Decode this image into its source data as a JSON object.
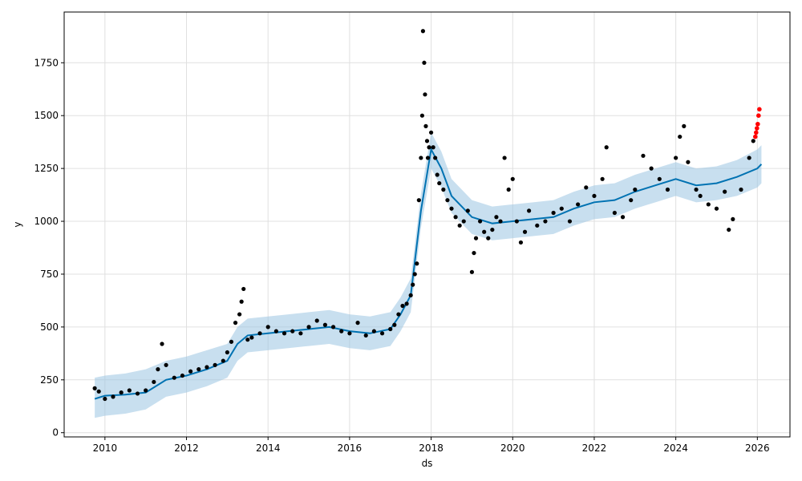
{
  "chart_data": {
    "type": "scatter",
    "title": "",
    "xlabel": "ds",
    "ylabel": "y",
    "xlim": [
      2009.0,
      2026.8
    ],
    "ylim": [
      -20,
      1990
    ],
    "x_ticks": [
      2010,
      2012,
      2014,
      2016,
      2018,
      2020,
      2022,
      2024,
      2026
    ],
    "x_tick_labels": [
      "2010",
      "2012",
      "2014",
      "2016",
      "2018",
      "2020",
      "2022",
      "2024",
      "2026"
    ],
    "y_ticks": [
      0,
      250,
      500,
      750,
      1000,
      1250,
      1500,
      1750
    ],
    "y_tick_labels": [
      "0",
      "250",
      "500",
      "750",
      "1000",
      "1250",
      "1500",
      "1750"
    ],
    "grid": true,
    "legend": "none",
    "colors": {
      "forecast_line": "#0072B2",
      "uncertainty_band": "#9BC4E2",
      "observed_points": "#000000",
      "highlighted_points": "#FF0000",
      "grid": "#e0e0e0"
    },
    "series": [
      {
        "kind": "forecast",
        "x": [
          2009.75,
          2010.0,
          2010.5,
          2011.0,
          2011.5,
          2012.0,
          2012.5,
          2013.0,
          2013.25,
          2013.5,
          2014.0,
          2014.5,
          2015.0,
          2015.5,
          2016.0,
          2016.5,
          2017.0,
          2017.25,
          2017.5,
          2017.75,
          2018.0,
          2018.25,
          2018.5,
          2019.0,
          2019.5,
          2020.0,
          2020.5,
          2021.0,
          2021.5,
          2022.0,
          2022.5,
          2023.0,
          2023.5,
          2024.0,
          2024.5,
          2025.0,
          2025.5,
          2026.0,
          2026.1
        ],
        "yhat": [
          160,
          175,
          180,
          190,
          250,
          270,
          300,
          340,
          420,
          460,
          470,
          480,
          490,
          500,
          480,
          470,
          490,
          560,
          650,
          1050,
          1340,
          1250,
          1120,
          1020,
          990,
          1000,
          1010,
          1020,
          1060,
          1090,
          1100,
          1140,
          1170,
          1200,
          1170,
          1180,
          1210,
          1250,
          1270
        ],
        "yhat_lower": [
          70,
          80,
          90,
          110,
          170,
          190,
          220,
          260,
          340,
          380,
          390,
          400,
          410,
          420,
          400,
          390,
          410,
          480,
          570,
          970,
          1250,
          1160,
          1040,
          940,
          910,
          920,
          930,
          940,
          980,
          1010,
          1020,
          1060,
          1090,
          1120,
          1090,
          1100,
          1120,
          1160,
          1180
        ],
        "yhat_upper": [
          260,
          270,
          280,
          300,
          340,
          360,
          390,
          420,
          500,
          540,
          550,
          560,
          570,
          580,
          560,
          550,
          570,
          640,
          730,
          1130,
          1420,
          1330,
          1200,
          1100,
          1070,
          1080,
          1090,
          1100,
          1140,
          1170,
          1180,
          1220,
          1250,
          1280,
          1250,
          1260,
          1290,
          1340,
          1360
        ]
      },
      {
        "kind": "observed",
        "x": [
          2009.75,
          2009.85,
          2010.0,
          2010.2,
          2010.4,
          2010.6,
          2010.8,
          2011.0,
          2011.2,
          2011.3,
          2011.4,
          2011.5,
          2011.7,
          2011.9,
          2012.1,
          2012.3,
          2012.5,
          2012.7,
          2012.9,
          2013.0,
          2013.1,
          2013.2,
          2013.3,
          2013.35,
          2013.4,
          2013.5,
          2013.6,
          2013.8,
          2014.0,
          2014.2,
          2014.4,
          2014.6,
          2014.8,
          2015.0,
          2015.2,
          2015.4,
          2015.6,
          2015.8,
          2016.0,
          2016.2,
          2016.4,
          2016.6,
          2016.8,
          2017.0,
          2017.1,
          2017.2,
          2017.3,
          2017.4,
          2017.5,
          2017.55,
          2017.6,
          2017.65,
          2017.7,
          2017.75,
          2017.78,
          2017.8,
          2017.83,
          2017.85,
          2017.87,
          2017.9,
          2017.92,
          2017.95,
          2018.0,
          2018.05,
          2018.1,
          2018.15,
          2018.2,
          2018.3,
          2018.4,
          2018.5,
          2018.6,
          2018.7,
          2018.8,
          2018.9,
          2019.0,
          2019.05,
          2019.1,
          2019.2,
          2019.3,
          2019.4,
          2019.5,
          2019.6,
          2019.7,
          2019.8,
          2019.9,
          2020.0,
          2020.1,
          2020.2,
          2020.3,
          2020.4,
          2020.6,
          2020.8,
          2021.0,
          2021.2,
          2021.4,
          2021.6,
          2021.8,
          2022.0,
          2022.2,
          2022.3,
          2022.5,
          2022.7,
          2022.9,
          2023.0,
          2023.2,
          2023.4,
          2023.6,
          2023.8,
          2024.0,
          2024.1,
          2024.2,
          2024.3,
          2024.5,
          2024.6,
          2024.8,
          2025.0,
          2025.2,
          2025.3,
          2025.4,
          2025.6,
          2025.8,
          2025.9
        ],
        "y": [
          210,
          195,
          160,
          170,
          190,
          200,
          185,
          200,
          240,
          300,
          420,
          320,
          260,
          270,
          290,
          300,
          310,
          320,
          340,
          380,
          430,
          520,
          560,
          620,
          680,
          440,
          450,
          470,
          500,
          480,
          470,
          480,
          470,
          500,
          530,
          510,
          500,
          480,
          470,
          520,
          460,
          480,
          470,
          490,
          510,
          560,
          600,
          610,
          650,
          700,
          750,
          800,
          1100,
          1300,
          1500,
          1900,
          1750,
          1600,
          1450,
          1380,
          1300,
          1350,
          1420,
          1350,
          1300,
          1220,
          1180,
          1150,
          1100,
          1060,
          1020,
          980,
          1000,
          1050,
          760,
          850,
          920,
          1000,
          950,
          920,
          960,
          1020,
          1000,
          1300,
          1150,
          1200,
          1000,
          900,
          950,
          1050,
          980,
          1000,
          1040,
          1060,
          1000,
          1080,
          1160,
          1120,
          1200,
          1350,
          1040,
          1020,
          1100,
          1150,
          1310,
          1250,
          1200,
          1150,
          1300,
          1400,
          1450,
          1280,
          1150,
          1120,
          1080,
          1060,
          1140,
          960,
          1010,
          1150,
          1300,
          1380
        ]
      },
      {
        "kind": "highlighted",
        "x": [
          2025.95,
          2025.97,
          2025.99,
          2026.01,
          2026.03,
          2026.05
        ],
        "y": [
          1400,
          1420,
          1440,
          1460,
          1500,
          1530
        ]
      }
    ]
  }
}
